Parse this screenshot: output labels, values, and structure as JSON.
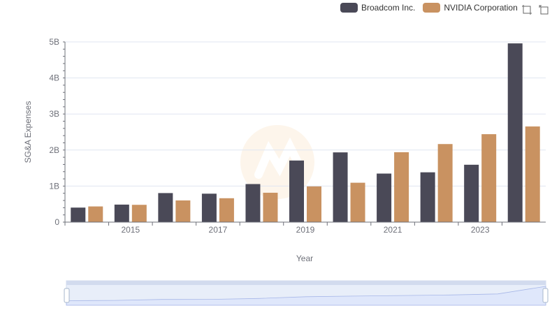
{
  "legend": {
    "items": [
      {
        "label": "Broadcom Inc.",
        "color": "#4a4957"
      },
      {
        "label": "NVIDIA Corporation",
        "color": "#c99261"
      }
    ]
  },
  "toolbox": {
    "icons": [
      "zoom-icon",
      "zoom-reset-icon"
    ]
  },
  "chart_data": {
    "type": "bar",
    "categories": [
      "2014",
      "2015",
      "2016",
      "2017",
      "2018",
      "2019",
      "2020",
      "2021",
      "2022",
      "2023",
      "2024"
    ],
    "x_tick_labels": [
      "2015",
      "2017",
      "2019",
      "2021",
      "2023"
    ],
    "xlabel": "Year",
    "ylabel": "SG&A Expenses",
    "ylim": [
      0,
      5000000000
    ],
    "y_tick_labels": [
      "0",
      "1B",
      "2B",
      "3B",
      "4B",
      "5B"
    ],
    "grid": true,
    "legend_position": "top-right",
    "series": [
      {
        "name": "Broadcom Inc.",
        "color": "#4a4957",
        "values": [
          403000000,
          486000000,
          806000000,
          789000000,
          1056000000,
          1709000000,
          1935000000,
          1347000000,
          1382000000,
          1592000000,
          4959000000
        ]
      },
      {
        "name": "NVIDIA Corporation",
        "color": "#c99261",
        "values": [
          435000000,
          480000000,
          602000000,
          663000000,
          815000000,
          991000000,
          1093000000,
          1940000000,
          2166000000,
          2440000000,
          2654000000
        ]
      }
    ]
  }
}
